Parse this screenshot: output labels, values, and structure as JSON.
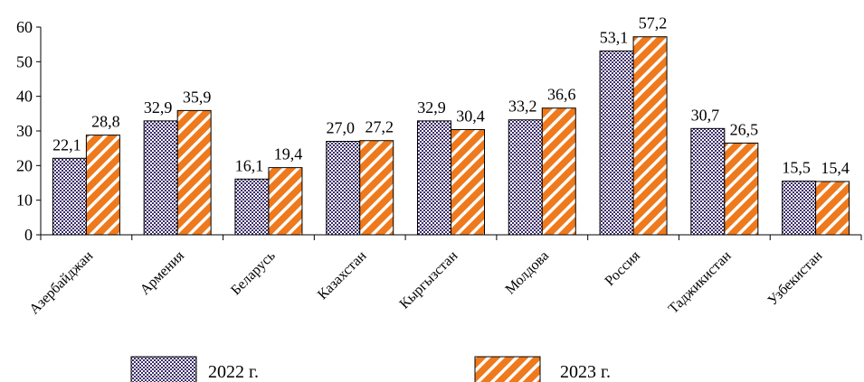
{
  "chart_data": {
    "type": "bar",
    "categories": [
      "Азербайджан",
      "Армения",
      "Беларусь",
      "Казахстан",
      "Кыргызстан",
      "Молдова",
      "Россия",
      "Таджикистан",
      "Узбекистан"
    ],
    "series": [
      {
        "name": "2022 г.",
        "values": [
          22.1,
          32.9,
          16.1,
          27.0,
          32.9,
          33.2,
          53.1,
          30.7,
          15.5
        ],
        "labels": [
          "22,1",
          "32,9",
          "16,1",
          "27,0",
          "32,9",
          "33,2",
          "53,1",
          "30,7",
          "15,5"
        ],
        "color": "#3d2f6b",
        "pattern": "checkered"
      },
      {
        "name": "2023 г.",
        "values": [
          28.8,
          35.9,
          19.4,
          27.2,
          30.4,
          36.6,
          57.2,
          26.5,
          15.4
        ],
        "labels": [
          "28,8",
          "35,9",
          "19,4",
          "27,2",
          "30,4",
          "36,6",
          "57,2",
          "26,5",
          "15,4"
        ],
        "color": "#ee7a1d",
        "pattern": "diagonal-stripes"
      }
    ],
    "ylim": [
      0,
      60
    ],
    "yticks": [
      "0",
      "10",
      "20",
      "30",
      "40",
      "50",
      "60"
    ],
    "title": "",
    "xlabel": "",
    "ylabel": "",
    "grid": false,
    "legend_position": "bottom"
  }
}
